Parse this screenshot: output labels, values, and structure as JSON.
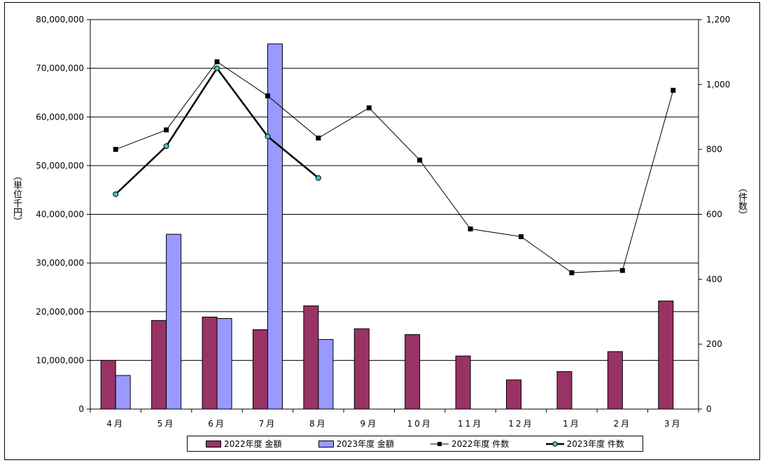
{
  "chart_data": {
    "type": "bar",
    "categories": [
      "4月",
      "5月",
      "6月",
      "7月",
      "8月",
      "9月",
      "10月",
      "11月",
      "12月",
      "1月",
      "2月",
      "3月"
    ],
    "series": [
      {
        "name": "2022年度 金額",
        "kind": "bar",
        "axis": "left",
        "color": "#993366",
        "values": [
          10000000,
          18200000,
          18900000,
          16300000,
          21200000,
          16500000,
          15300000,
          10900000,
          6000000,
          7700000,
          11800000,
          22200000
        ]
      },
      {
        "name": "2023年度 金額",
        "kind": "bar",
        "axis": "left",
        "color": "#9999ff",
        "values": [
          6900000,
          35900000,
          18600000,
          75000000,
          14300000,
          null,
          null,
          null,
          null,
          null,
          null,
          null
        ]
      },
      {
        "name": "2022年度 件数",
        "kind": "line",
        "axis": "right",
        "color": "#000000",
        "values": [
          800,
          860,
          1070,
          965,
          835,
          928,
          767,
          555,
          531,
          420,
          427,
          982
        ]
      },
      {
        "name": "2023年度 件数",
        "kind": "line",
        "axis": "right",
        "color": "#000000",
        "marker_color": "#33cccc",
        "values": [
          662,
          810,
          1050,
          840,
          712,
          null,
          null,
          null,
          null,
          null,
          null,
          null
        ]
      }
    ],
    "y_left": {
      "label": "（単位千円）",
      "min": 0,
      "max": 80000000,
      "step": 10000000,
      "tick_labels": [
        "0",
        "10,000,000",
        "20,000,000",
        "30,000,000",
        "40,000,000",
        "50,000,000",
        "60,000,000",
        "70,000,000",
        "80,000,000"
      ]
    },
    "y_right": {
      "label": "（件数）",
      "min": 0,
      "max": 1200,
      "step": 200,
      "tick_labels": [
        "0",
        "200",
        "400",
        "600",
        "800",
        "1,000",
        "1,200"
      ]
    },
    "grid": true,
    "legend": "bottom"
  }
}
